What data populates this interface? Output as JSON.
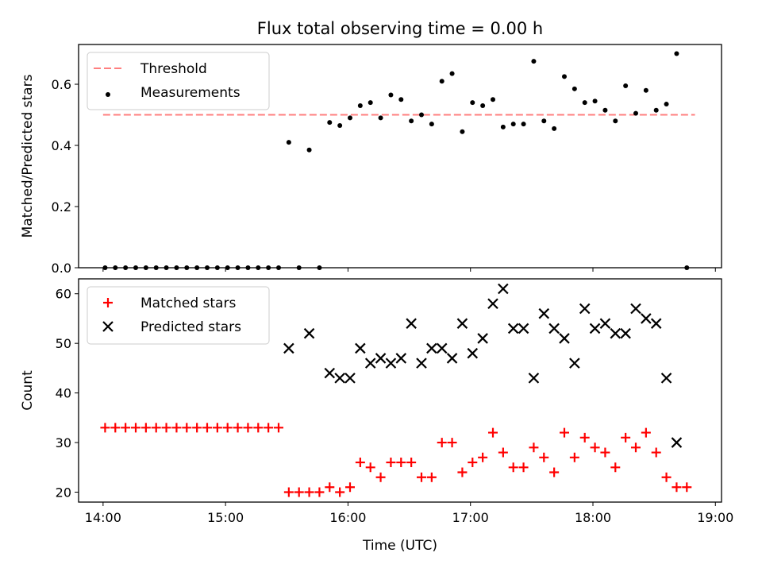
{
  "chart_data": {
    "type": "scatter",
    "title": "Flux total observing time = 0.00 h",
    "xlabel": "Time (UTC)",
    "xlim": [
      "13:48",
      "19:03"
    ],
    "xticks": [
      "14:00",
      "15:00",
      "16:00",
      "17:00",
      "18:00",
      "19:00"
    ],
    "grid": false,
    "panels": [
      {
        "ylabel": "Matched/Predicted stars",
        "ylim": [
          0,
          0.73
        ],
        "yticks": [
          "0.0",
          "0.2",
          "0.4",
          "0.6"
        ],
        "legend": "top-left",
        "threshold": {
          "name": "Threshold",
          "value": 0.5,
          "x_range": [
            "14:00",
            "18:50"
          ],
          "color": "#ff7f7f"
        },
        "series": [
          {
            "name": "Measurements",
            "marker": "dot",
            "color": "#000000",
            "points": [
              [
                "14:01",
                0
              ],
              [
                "14:06",
                0
              ],
              [
                "14:11",
                0
              ],
              [
                "14:16",
                0
              ],
              [
                "14:21",
                0
              ],
              [
                "14:26",
                0
              ],
              [
                "14:31",
                0
              ],
              [
                "14:36",
                0
              ],
              [
                "14:41",
                0
              ],
              [
                "14:46",
                0
              ],
              [
                "14:51",
                0
              ],
              [
                "14:56",
                0
              ],
              [
                "15:01",
                0
              ],
              [
                "15:06",
                0
              ],
              [
                "15:11",
                0
              ],
              [
                "15:16",
                0
              ],
              [
                "15:21",
                0
              ],
              [
                "15:26",
                0
              ],
              [
                "15:31",
                0.41
              ],
              [
                "15:36",
                0
              ],
              [
                "15:41",
                0.385
              ],
              [
                "15:46",
                0
              ],
              [
                "15:51",
                0.475
              ],
              [
                "15:56",
                0.465
              ],
              [
                "16:01",
                0.49
              ],
              [
                "16:06",
                0.53
              ],
              [
                "16:11",
                0.54
              ],
              [
                "16:16",
                0.49
              ],
              [
                "16:21",
                0.565
              ],
              [
                "16:26",
                0.55
              ],
              [
                "16:31",
                0.48
              ],
              [
                "16:36",
                0.5
              ],
              [
                "16:41",
                0.47
              ],
              [
                "16:46",
                0.61
              ],
              [
                "16:51",
                0.635
              ],
              [
                "16:56",
                0.445
              ],
              [
                "17:01",
                0.54
              ],
              [
                "17:06",
                0.53
              ],
              [
                "17:11",
                0.55
              ],
              [
                "17:16",
                0.46
              ],
              [
                "17:21",
                0.47
              ],
              [
                "17:26",
                0.47
              ],
              [
                "17:31",
                0.675
              ],
              [
                "17:36",
                0.48
              ],
              [
                "17:41",
                0.455
              ],
              [
                "17:46",
                0.625
              ],
              [
                "17:51",
                0.585
              ],
              [
                "17:56",
                0.54
              ],
              [
                "18:01",
                0.545
              ],
              [
                "18:06",
                0.515
              ],
              [
                "18:11",
                0.48
              ],
              [
                "18:16",
                0.595
              ],
              [
                "18:21",
                0.505
              ],
              [
                "18:26",
                0.58
              ],
              [
                "18:31",
                0.515
              ],
              [
                "18:36",
                0.535
              ],
              [
                "18:41",
                0.7
              ],
              [
                "18:46",
                0
              ]
            ]
          }
        ]
      },
      {
        "ylabel": "Count",
        "ylim": [
          18,
          63
        ],
        "yticks": [
          "20",
          "30",
          "40",
          "50",
          "60"
        ],
        "legend": "top-left",
        "series": [
          {
            "name": "Matched stars",
            "marker": "plus",
            "color": "#ff0000",
            "points": [
              [
                "14:01",
                33
              ],
              [
                "14:06",
                33
              ],
              [
                "14:11",
                33
              ],
              [
                "14:16",
                33
              ],
              [
                "14:21",
                33
              ],
              [
                "14:26",
                33
              ],
              [
                "14:31",
                33
              ],
              [
                "14:36",
                33
              ],
              [
                "14:41",
                33
              ],
              [
                "14:46",
                33
              ],
              [
                "14:51",
                33
              ],
              [
                "14:56",
                33
              ],
              [
                "15:01",
                33
              ],
              [
                "15:06",
                33
              ],
              [
                "15:11",
                33
              ],
              [
                "15:16",
                33
              ],
              [
                "15:21",
                33
              ],
              [
                "15:26",
                33
              ],
              [
                "15:31",
                20
              ],
              [
                "15:36",
                20
              ],
              [
                "15:41",
                20
              ],
              [
                "15:46",
                20
              ],
              [
                "15:51",
                21
              ],
              [
                "15:56",
                20
              ],
              [
                "16:01",
                21
              ],
              [
                "16:06",
                26
              ],
              [
                "16:11",
                25
              ],
              [
                "16:16",
                23
              ],
              [
                "16:21",
                26
              ],
              [
                "16:26",
                26
              ],
              [
                "16:31",
                26
              ],
              [
                "16:36",
                23
              ],
              [
                "16:41",
                23
              ],
              [
                "16:46",
                30
              ],
              [
                "16:51",
                30
              ],
              [
                "16:56",
                24
              ],
              [
                "17:01",
                26
              ],
              [
                "17:06",
                27
              ],
              [
                "17:11",
                32
              ],
              [
                "17:16",
                28
              ],
              [
                "17:21",
                25
              ],
              [
                "17:26",
                25
              ],
              [
                "17:31",
                29
              ],
              [
                "17:36",
                27
              ],
              [
                "17:41",
                24
              ],
              [
                "17:46",
                32
              ],
              [
                "17:51",
                27
              ],
              [
                "17:56",
                31
              ],
              [
                "18:01",
                29
              ],
              [
                "18:06",
                28
              ],
              [
                "18:11",
                25
              ],
              [
                "18:16",
                31
              ],
              [
                "18:21",
                29
              ],
              [
                "18:26",
                32
              ],
              [
                "18:31",
                28
              ],
              [
                "18:36",
                23
              ],
              [
                "18:41",
                21
              ],
              [
                "18:46",
                21
              ]
            ]
          },
          {
            "name": "Predicted stars",
            "marker": "x",
            "color": "#000000",
            "points": [
              [
                "15:31",
                49
              ],
              [
                "15:41",
                52
              ],
              [
                "15:51",
                44
              ],
              [
                "15:56",
                43
              ],
              [
                "16:01",
                43
              ],
              [
                "16:06",
                49
              ],
              [
                "16:11",
                46
              ],
              [
                "16:16",
                47
              ],
              [
                "16:21",
                46
              ],
              [
                "16:26",
                47
              ],
              [
                "16:31",
                54
              ],
              [
                "16:36",
                46
              ],
              [
                "16:41",
                49
              ],
              [
                "16:46",
                49
              ],
              [
                "16:51",
                47
              ],
              [
                "16:56",
                54
              ],
              [
                "17:01",
                48
              ],
              [
                "17:06",
                51
              ],
              [
                "17:11",
                58
              ],
              [
                "17:16",
                61
              ],
              [
                "17:21",
                53
              ],
              [
                "17:26",
                53
              ],
              [
                "17:31",
                43
              ],
              [
                "17:36",
                56
              ],
              [
                "17:41",
                53
              ],
              [
                "17:46",
                51
              ],
              [
                "17:51",
                46
              ],
              [
                "17:56",
                57
              ],
              [
                "18:01",
                53
              ],
              [
                "18:06",
                54
              ],
              [
                "18:11",
                52
              ],
              [
                "18:16",
                52
              ],
              [
                "18:21",
                57
              ],
              [
                "18:26",
                55
              ],
              [
                "18:31",
                54
              ],
              [
                "18:36",
                43
              ],
              [
                "18:41",
                30
              ]
            ]
          }
        ]
      }
    ]
  }
}
